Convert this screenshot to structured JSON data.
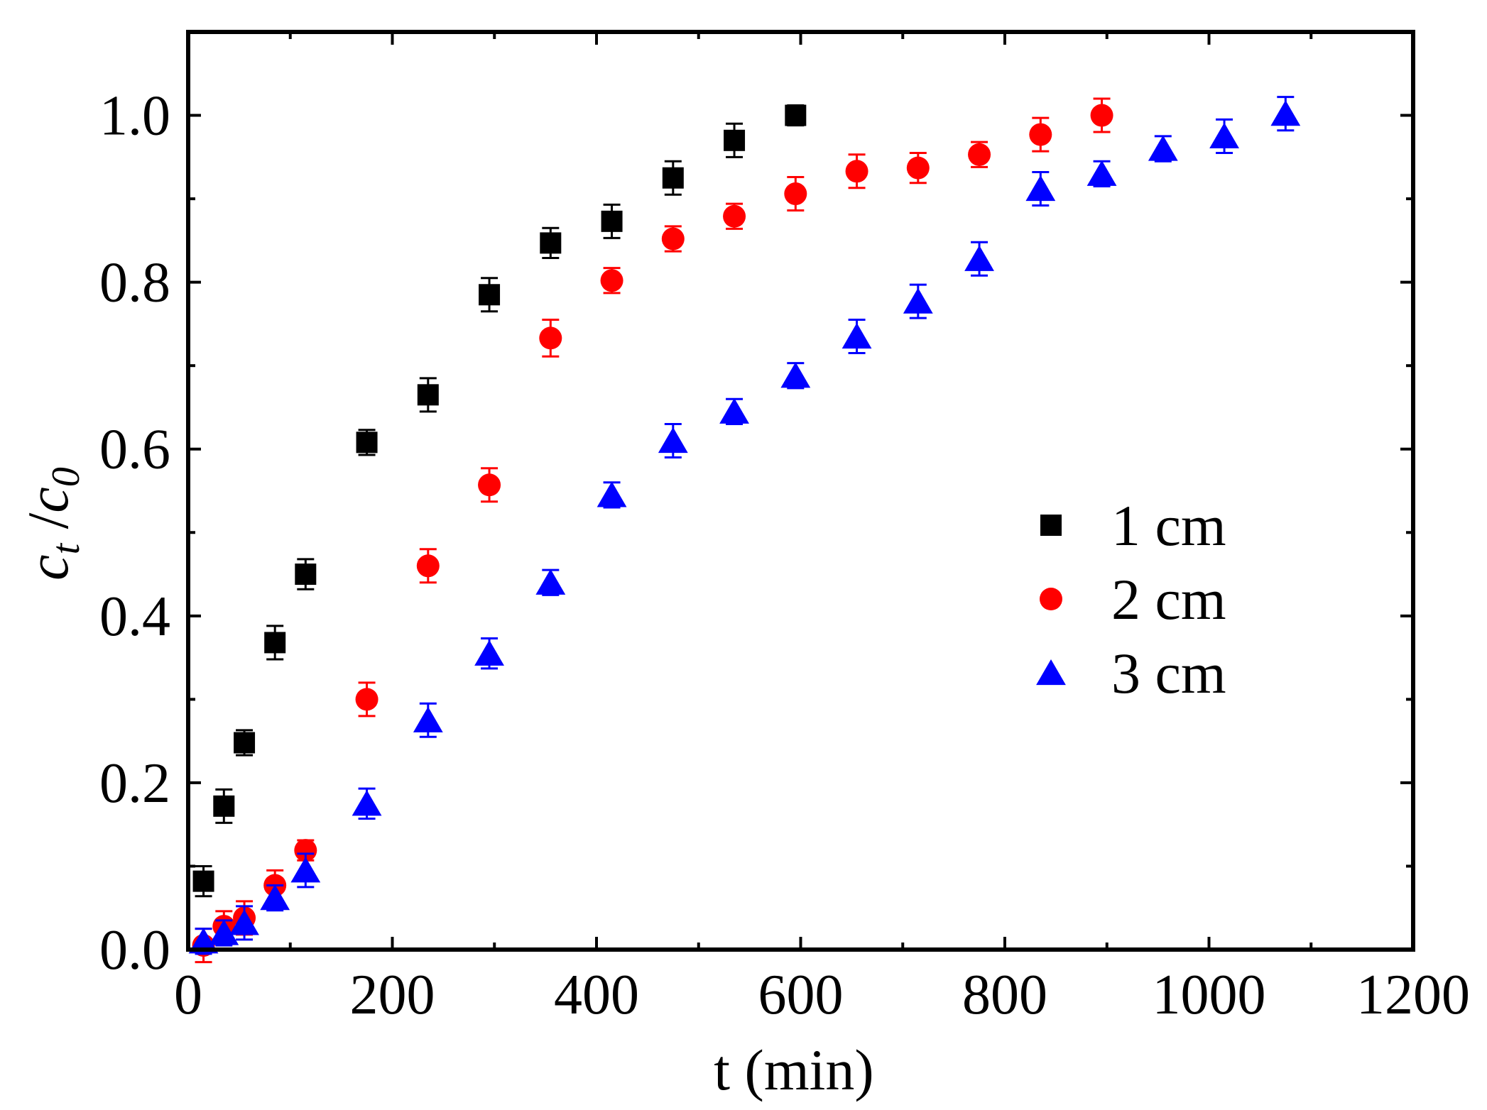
{
  "chart_data": {
    "type": "scatter",
    "title": "",
    "xlabel": "t (min)",
    "ylabel": {
      "c": "c",
      "t_sub": "t",
      "slash": " /",
      "c0": "c",
      "zero_sub": "0"
    },
    "xlim": [
      0,
      1200
    ],
    "ylim": [
      0,
      1.1
    ],
    "xticks": [
      0,
      200,
      400,
      600,
      800,
      1000,
      1200
    ],
    "xtick_labels": [
      "0",
      "200",
      "400",
      "600",
      "800",
      "1000",
      "1200"
    ],
    "yticks": [
      0,
      0.2,
      0.4,
      0.6,
      0.8,
      1.0
    ],
    "ytick_labels": [
      "0.0",
      "0.2",
      "0.4",
      "0.6",
      "0.8",
      "1.0"
    ],
    "grid": false,
    "legend_position": "right-center",
    "series": [
      {
        "name": "1 cm",
        "marker": "square",
        "color": "#000000",
        "x": [
          15,
          35,
          55,
          85,
          115,
          175,
          235,
          295,
          355,
          415,
          475,
          535,
          595
        ],
        "y": [
          0.082,
          0.172,
          0.248,
          0.368,
          0.45,
          0.608,
          0.665,
          0.785,
          0.847,
          0.873,
          0.925,
          0.97,
          1.0
        ],
        "err": [
          0.018,
          0.02,
          0.015,
          0.02,
          0.018,
          0.015,
          0.02,
          0.02,
          0.018,
          0.02,
          0.02,
          0.02,
          0.012
        ]
      },
      {
        "name": "2 cm",
        "marker": "circle",
        "color": "#ff0000",
        "x": [
          15,
          35,
          55,
          85,
          115,
          175,
          235,
          295,
          355,
          415,
          475,
          535,
          595,
          655,
          715,
          775,
          835,
          895
        ],
        "y": [
          0.005,
          0.028,
          0.038,
          0.077,
          0.119,
          0.3,
          0.46,
          0.557,
          0.733,
          0.802,
          0.852,
          0.879,
          0.906,
          0.933,
          0.937,
          0.953,
          0.977,
          1.0
        ],
        "err": [
          0.02,
          0.018,
          0.02,
          0.018,
          0.012,
          0.02,
          0.02,
          0.02,
          0.022,
          0.015,
          0.015,
          0.015,
          0.02,
          0.02,
          0.018,
          0.015,
          0.02,
          0.02
        ]
      },
      {
        "name": "3 cm",
        "marker": "triangle",
        "color": "#0000ff",
        "x": [
          15,
          35,
          55,
          85,
          115,
          175,
          235,
          295,
          355,
          415,
          475,
          535,
          595,
          655,
          715,
          775,
          835,
          895,
          955,
          1015,
          1075
        ],
        "y": [
          0.01,
          0.02,
          0.032,
          0.062,
          0.095,
          0.175,
          0.275,
          0.355,
          0.44,
          0.545,
          0.61,
          0.645,
          0.688,
          0.735,
          0.777,
          0.828,
          0.912,
          0.93,
          0.96,
          0.975,
          1.002
        ],
        "err": [
          0.015,
          0.015,
          0.02,
          0.015,
          0.02,
          0.018,
          0.02,
          0.018,
          0.015,
          0.015,
          0.02,
          0.015,
          0.015,
          0.02,
          0.02,
          0.02,
          0.02,
          0.015,
          0.015,
          0.02,
          0.02
        ]
      }
    ]
  }
}
